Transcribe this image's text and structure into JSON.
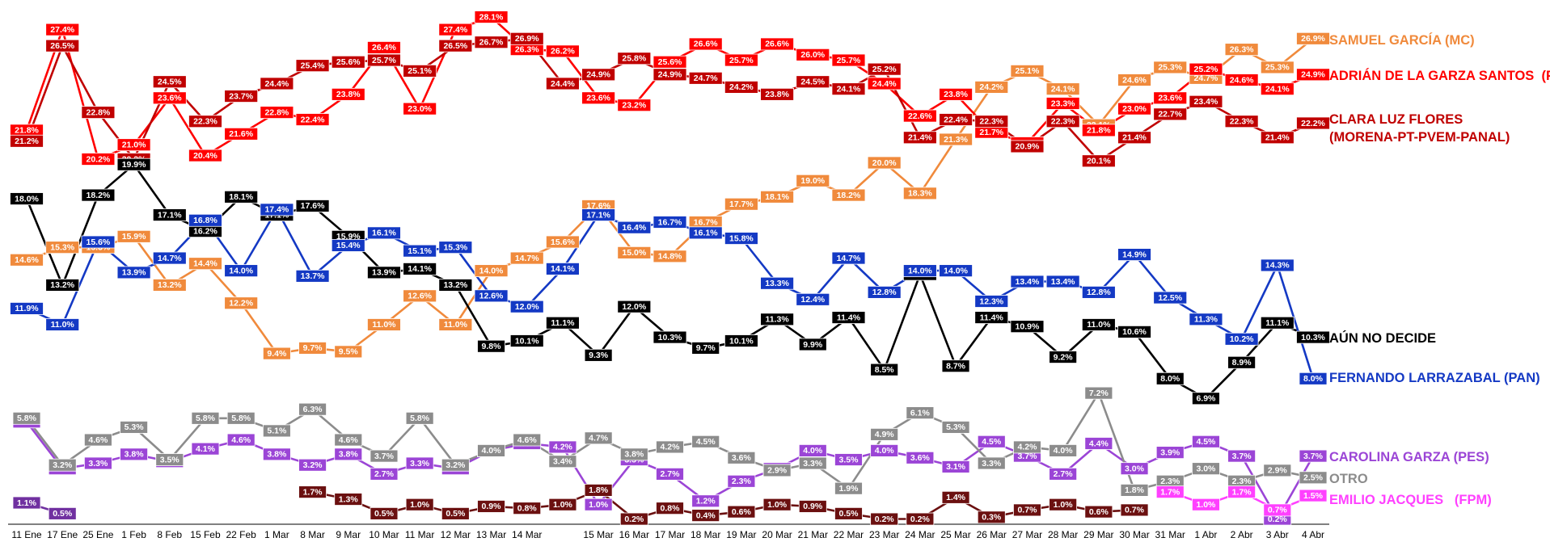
{
  "chart_data": {
    "type": "line",
    "categories": [
      "11 Ene",
      "17 Ene",
      "25 Ene",
      "1 Feb",
      "8 Feb",
      "15 Feb",
      "22 Feb",
      "1 Mar",
      "8 Mar",
      "9 Mar",
      "10 Mar",
      "11 Mar",
      "12 Mar",
      "13 Mar",
      "14 Mar",
      null,
      "15 Mar",
      "16 Mar",
      "17 Mar",
      "18 Mar",
      "19 Mar",
      "20 Mar",
      "21 Mar",
      "22 Mar",
      "23 Mar",
      "24 Mar",
      "25 Mar",
      "26 Mar",
      "27 Mar",
      "28 Mar",
      "29 Mar",
      "30 Mar",
      "31 Mar",
      "1 Abr",
      "2 Abr",
      "3 Abr",
      "4 Abr"
    ],
    "ylim": [
      0,
      29
    ],
    "series": [
      {
        "name": "SAMUEL GARCÍA (MC)",
        "color": "#f08a3c",
        "values": [
          14.6,
          15.3,
          15.3,
          15.9,
          13.2,
          14.4,
          12.2,
          9.4,
          9.7,
          9.5,
          11.0,
          12.6,
          11.0,
          14.0,
          14.7,
          15.6,
          17.6,
          15.0,
          14.8,
          16.7,
          17.7,
          18.1,
          19.0,
          18.2,
          20.0,
          18.3,
          21.3,
          24.2,
          25.1,
          24.1,
          22.1,
          24.6,
          25.3,
          24.7,
          26.3,
          25.3,
          26.9
        ],
        "value_labels": [
          "14.6%",
          "15.3%",
          "15.3%",
          "15.9%",
          "13.2%",
          "14.4%",
          "12.2%",
          "9.4%",
          "9.7%",
          "9.5%",
          "11.0%",
          "12.6%",
          "11.0%",
          "14.0%",
          "14.7%",
          "15.6%",
          "17.6%",
          "15.0%",
          "14.8%",
          "16.7%",
          "17.7%",
          "18.1%",
          "19.0%",
          "18.2%",
          "20.0%",
          "18.3%",
          "21.3%",
          "24.2%",
          "25.1%",
          "24.1%",
          "22.1%",
          "24.6%",
          "25.3%",
          "24.7%",
          "26.3%",
          "25.3%",
          "26.9%"
        ]
      },
      {
        "name": "ADRIÁN DE LA GARZA SANTOS  (PRI-PRD)",
        "color": "#ff0000",
        "values": [
          21.8,
          27.4,
          20.2,
          21.0,
          23.6,
          20.4,
          21.6,
          22.8,
          22.4,
          23.8,
          26.4,
          23.0,
          27.4,
          28.1,
          26.3,
          26.2,
          23.6,
          23.2,
          25.6,
          26.6,
          25.7,
          26.6,
          26.0,
          25.7,
          24.4,
          22.6,
          23.8,
          21.7,
          21.1,
          23.3,
          21.8,
          23.0,
          23.6,
          25.2,
          24.6,
          24.1,
          24.9
        ],
        "value_labels": [
          "21.8%",
          "27.4%",
          "20.2%",
          "21.0%",
          "23.6%",
          "20.4%",
          "21.6%",
          "22.8%",
          "22.4%",
          "23.8%",
          "26.4%",
          "23.0%",
          "27.4%",
          "28.1%",
          "26.3%",
          "26.2%",
          "23.6%",
          "23.2%",
          "25.6%",
          "26.6%",
          "25.7%",
          "26.6%",
          "26.0%",
          "25.7%",
          "24.4%",
          "22.6%",
          "23.8%",
          "21.7%",
          "21.1%",
          "23.3%",
          "21.8%",
          "23.0%",
          "23.6%",
          "25.2%",
          "24.6%",
          "24.1%",
          "24.9%"
        ]
      },
      {
        "name": "CLARA LUZ FLORES (MORENA-PT-PVEM-PANAL)",
        "color": "#c00000",
        "values": [
          21.2,
          26.5,
          22.8,
          20.2,
          24.5,
          22.3,
          23.7,
          24.4,
          25.4,
          25.6,
          25.7,
          25.1,
          26.5,
          26.7,
          26.9,
          24.4,
          24.9,
          25.8,
          24.9,
          24.7,
          24.2,
          23.8,
          24.5,
          24.1,
          25.2,
          21.4,
          22.4,
          22.3,
          20.9,
          22.3,
          20.1,
          21.4,
          22.7,
          23.4,
          22.3,
          21.4,
          22.2
        ],
        "value_labels": [
          "21.2%",
          "26.5%",
          "22.8%",
          "20.2%",
          "24.5%",
          "22.3%",
          "23.7%",
          "24.4%",
          "25.4%",
          "25.6%",
          "25.7%",
          "25.1%",
          "26.5%",
          "26.7%",
          "26.9%",
          "24.4%",
          "24.9%",
          "25.8%",
          "24.9%",
          "24.7%",
          "24.2%",
          "23.8%",
          "24.5%",
          "24.1%",
          "25.2%",
          "21.4%",
          "22.4%",
          "22.3%",
          "20.9%",
          "22.3%",
          "20.1%",
          "21.4%",
          "22.7%",
          "23.4%",
          "22.3%",
          "21.4%",
          "22.2%"
        ]
      },
      {
        "name": "AÚN NO DECIDE",
        "color": "#000000",
        "values": [
          18.0,
          13.2,
          18.2,
          19.9,
          17.1,
          16.2,
          18.1,
          17.1,
          17.6,
          15.9,
          13.9,
          14.1,
          13.2,
          9.8,
          10.1,
          11.1,
          9.3,
          12.0,
          10.3,
          9.7,
          10.1,
          11.3,
          9.9,
          11.4,
          8.5,
          13.8,
          8.7,
          11.4,
          10.9,
          9.2,
          11.0,
          10.6,
          8.0,
          6.9,
          8.9,
          11.1,
          10.3
        ],
        "value_labels": [
          "18.0%",
          "13.2%",
          "18.2%",
          "19.9%",
          "17.1%",
          "16.2%",
          "18.1%",
          "17.1%",
          "17.6%",
          "15.9%",
          "13.9%",
          "14.1%",
          "13.2%",
          "9.8%",
          "10.1%",
          "11.1%",
          "9.3%",
          "12.0%",
          "10.3%",
          "9.7%",
          "10.1%",
          "11.3%",
          "9.9%",
          "11.4%",
          "8.5%",
          "13.8%",
          "8.7%",
          "11.4%",
          "10.9%",
          "9.2%",
          "11.0%",
          "10.6%",
          "8.0%",
          "6.9%",
          "8.9%",
          "11.1%",
          "10.3%"
        ]
      },
      {
        "name": "FERNANDO LARRAZABAL (PAN)",
        "color": "#1439c4",
        "values": [
          11.9,
          11.0,
          15.6,
          13.9,
          14.7,
          16.8,
          14.0,
          17.4,
          13.7,
          15.4,
          16.1,
          15.1,
          15.3,
          12.6,
          12.0,
          14.1,
          17.1,
          16.4,
          16.7,
          16.1,
          15.8,
          13.3,
          12.4,
          14.7,
          12.8,
          14.0,
          14.0,
          12.3,
          13.4,
          13.4,
          12.8,
          14.9,
          12.5,
          11.3,
          10.2,
          14.3,
          8.0
        ],
        "value_labels": [
          "11.9%",
          "11.0%",
          "15.6%",
          "13.9%",
          "14.7%",
          "16.8%",
          "14.0%",
          "17.4%",
          "13.7%",
          "15.4%",
          "16.1%",
          "15.1%",
          "15.3%",
          "12.6%",
          "12.0%",
          "14.1%",
          "17.1%",
          "16.4%",
          "16.7%",
          "16.1%",
          "15.8%",
          "13.3%",
          "12.4%",
          "14.7%",
          "12.8%",
          "14.0%",
          "14.0%",
          "12.3%",
          "13.4%",
          "13.4%",
          "12.8%",
          "14.9%",
          "12.5%",
          "11.3%",
          "10.2%",
          "14.3%",
          "8.0%"
        ]
      },
      {
        "name": "CAROLINA GARZA (PES)",
        "color": "#9b45d6",
        "values": [
          5.6,
          3.0,
          3.3,
          3.8,
          3.4,
          4.1,
          4.6,
          3.8,
          3.2,
          3.8,
          2.7,
          3.3,
          3.0,
          4.0,
          4.4,
          4.2,
          1.0,
          3.5,
          2.7,
          1.2,
          2.3,
          3.0,
          4.0,
          3.5,
          4.0,
          3.6,
          3.1,
          4.5,
          3.7,
          2.7,
          4.4,
          3.0,
          3.9,
          4.5,
          3.7,
          0.2,
          3.7
        ],
        "value_labels": [
          "5.6%",
          "3.0%",
          "3.3%",
          "3.8%",
          "3.4%",
          "4.1%",
          "4.6%",
          "3.8%",
          "3.2%",
          "3.8%",
          "2.7%",
          "3.3%",
          "3.0%",
          "4.0%",
          "4.4%",
          "4.2%",
          "1.0%",
          "3.5%",
          "2.7%",
          "1.2%",
          "2.3%",
          "3.0%",
          "4.0%",
          "3.5%",
          "4.0%",
          "3.6%",
          "3.1%",
          "4.5%",
          "3.7%",
          "2.7%",
          "4.4%",
          "3.0%",
          "3.9%",
          "4.5%",
          "3.7%",
          "0.2%",
          "3.7%"
        ]
      },
      {
        "name": "OTRO",
        "color": "#8c8c8c",
        "values": [
          5.8,
          3.2,
          4.6,
          5.3,
          3.5,
          5.8,
          5.8,
          5.1,
          6.3,
          4.6,
          3.7,
          5.8,
          3.2,
          4.0,
          4.6,
          3.4,
          4.7,
          3.8,
          4.2,
          4.5,
          3.6,
          2.9,
          3.3,
          1.9,
          4.9,
          6.1,
          5.3,
          3.3,
          4.2,
          4.0,
          7.2,
          1.8,
          2.3,
          3.0,
          2.3,
          2.9,
          2.5
        ],
        "value_labels": [
          "5.8%",
          "3.2%",
          "4.6%",
          "5.3%",
          "3.5%",
          "5.8%",
          "5.8%",
          "5.1%",
          "6.3%",
          "4.6%",
          "3.7%",
          "5.8%",
          "3.2%",
          "4.0%",
          "4.6%",
          "3.4%",
          "4.7%",
          "3.8%",
          "4.2%",
          "4.5%",
          "3.6%",
          "2.9%",
          "3.3%",
          "1.9%",
          "4.9%",
          "6.1%",
          "5.3%",
          "3.3%",
          "4.2%",
          "4.0%",
          "7.2%",
          "1.8%",
          "2.3%",
          "3.0%",
          "2.3%",
          "2.9%",
          "2.5%"
        ]
      },
      {
        "name": "EMILIO JACQUES   (FPM)",
        "color": "#ff40ff",
        "values": [
          null,
          null,
          null,
          null,
          null,
          null,
          null,
          null,
          null,
          null,
          null,
          null,
          null,
          null,
          null,
          null,
          null,
          null,
          null,
          null,
          null,
          null,
          null,
          null,
          null,
          null,
          null,
          null,
          null,
          null,
          null,
          null,
          1.7,
          1.0,
          1.7,
          0.7,
          1.5
        ],
        "value_labels": [
          null,
          null,
          null,
          null,
          null,
          null,
          null,
          null,
          null,
          null,
          null,
          null,
          null,
          null,
          null,
          null,
          null,
          null,
          null,
          null,
          null,
          null,
          null,
          null,
          null,
          null,
          null,
          null,
          null,
          null,
          null,
          null,
          "1.7%",
          "1.0%",
          "1.7%",
          "0.7%",
          "1.5%"
        ]
      },
      {
        "color": "#6b1010",
        "values": [
          null,
          null,
          null,
          null,
          null,
          null,
          null,
          null,
          1.7,
          1.3,
          0.5,
          1.0,
          0.5,
          0.9,
          0.8,
          1.0,
          1.8,
          0.2,
          0.8,
          0.4,
          0.6,
          1.0,
          0.9,
          0.5,
          0.2,
          0.2,
          1.4,
          0.3,
          0.7,
          1.0,
          0.6,
          0.7,
          null,
          null,
          null,
          null,
          null
        ],
        "value_labels": [
          null,
          null,
          null,
          null,
          null,
          null,
          null,
          null,
          "1.7%",
          "1.3%",
          "0.5%",
          "1.0%",
          "0.5%",
          "0.9%",
          "0.8%",
          "1.0%",
          "1.8%",
          "0.2%",
          "0.8%",
          "0.4%",
          "0.6%",
          "1.0%",
          "0.9%",
          "0.5%",
          "0.2%",
          "0.2%",
          "1.4%",
          "0.3%",
          "0.7%",
          "1.0%",
          "0.6%",
          "0.7%",
          null,
          null,
          null,
          null,
          null
        ]
      },
      {
        "color": "#7030a0",
        "values": [
          1.1,
          0.5,
          null,
          null,
          null,
          null,
          null,
          null,
          null,
          null,
          null,
          null,
          null,
          null,
          null,
          null,
          null,
          null,
          null,
          null,
          null,
          null,
          null,
          null,
          null,
          null,
          null,
          null,
          null,
          null,
          null,
          null,
          null,
          null,
          null,
          null,
          null
        ],
        "value_labels": [
          "1.1%",
          "0.5%",
          null,
          null,
          null,
          null,
          null,
          null,
          null,
          null,
          null,
          null,
          null,
          null,
          null,
          null,
          null,
          null,
          null,
          null,
          null,
          null,
          null,
          null,
          null,
          null,
          null,
          null,
          null,
          null,
          null,
          null,
          null,
          null,
          null,
          null,
          null
        ]
      }
    ]
  }
}
